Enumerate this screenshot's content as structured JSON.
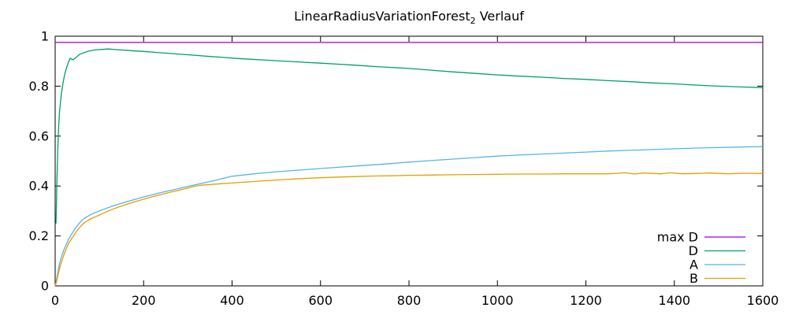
{
  "title": {
    "main": "LinearRadiusVariationForest",
    "subscript": "2",
    "suffix": " Verlauf"
  },
  "colors": {
    "background": "#ffffff",
    "axis": "#000000",
    "max_d": "#9400d3",
    "d": "#009e73",
    "a": "#56b4e9",
    "b": "#e69f00"
  },
  "chart_data": {
    "type": "line",
    "title": "LinearRadiusVariationForest_2 Verlauf",
    "xlabel": "",
    "ylabel": "",
    "xlim": [
      0,
      1600
    ],
    "ylim": [
      0,
      1
    ],
    "grid": false,
    "legend_position": "inside-bottom-right",
    "xticks": [
      {
        "v": 0,
        "label": "0"
      },
      {
        "v": 200,
        "label": "200"
      },
      {
        "v": 400,
        "label": "400"
      },
      {
        "v": 600,
        "label": "600"
      },
      {
        "v": 800,
        "label": "800"
      },
      {
        "v": 1000,
        "label": "1000"
      },
      {
        "v": 1200,
        "label": "1200"
      },
      {
        "v": 1400,
        "label": "1400"
      },
      {
        "v": 1600,
        "label": "1600"
      }
    ],
    "yticks": [
      {
        "v": 0,
        "label": "0"
      },
      {
        "v": 0.2,
        "label": "0.2"
      },
      {
        "v": 0.4,
        "label": "0.4"
      },
      {
        "v": 0.6,
        "label": "0.6"
      },
      {
        "v": 0.8,
        "label": "0.8"
      },
      {
        "v": 1,
        "label": "1"
      }
    ],
    "series": [
      {
        "name": "max D",
        "color": "#9400d3",
        "x": [
          0,
          1600
        ],
        "y": [
          0.975,
          0.975
        ]
      },
      {
        "name": "D",
        "color": "#009e73",
        "x": [
          2,
          4,
          6,
          8,
          10,
          14,
          18,
          22,
          26,
          30,
          34,
          40,
          48,
          56,
          64,
          75,
          90,
          105,
          120,
          140,
          160,
          180,
          200,
          230,
          260,
          290,
          320,
          350,
          380,
          410,
          440,
          470,
          500,
          530,
          560,
          600,
          640,
          680,
          720,
          760,
          800,
          850,
          900,
          950,
          1000,
          1050,
          1100,
          1150,
          1200,
          1250,
          1300,
          1350,
          1400,
          1450,
          1500,
          1550,
          1600
        ],
        "y": [
          0.25,
          0.42,
          0.55,
          0.64,
          0.7,
          0.77,
          0.815,
          0.85,
          0.875,
          0.895,
          0.912,
          0.905,
          0.916,
          0.928,
          0.933,
          0.94,
          0.945,
          0.947,
          0.949,
          0.946,
          0.944,
          0.941,
          0.939,
          0.935,
          0.931,
          0.927,
          0.923,
          0.919,
          0.915,
          0.911,
          0.908,
          0.905,
          0.902,
          0.899,
          0.896,
          0.892,
          0.888,
          0.884,
          0.879,
          0.875,
          0.871,
          0.864,
          0.857,
          0.851,
          0.845,
          0.84,
          0.836,
          0.831,
          0.827,
          0.822,
          0.818,
          0.813,
          0.809,
          0.804,
          0.8,
          0.797,
          0.794
        ]
      },
      {
        "name": "A",
        "color": "#56b4e9",
        "x": [
          0,
          3,
          6,
          10,
          15,
          20,
          25,
          30,
          35,
          40,
          46,
          52,
          58,
          64,
          72,
          80,
          90,
          100,
          115,
          130,
          145,
          160,
          180,
          200,
          220,
          240,
          260,
          280,
          300,
          320,
          340,
          360,
          380,
          400,
          425,
          450,
          475,
          500,
          530,
          560,
          600,
          640,
          680,
          720,
          760,
          800,
          850,
          900,
          950,
          1000,
          1050,
          1100,
          1150,
          1200,
          1250,
          1300,
          1350,
          1400,
          1450,
          1500,
          1550,
          1600
        ],
        "y": [
          0,
          0.025,
          0.055,
          0.09,
          0.12,
          0.145,
          0.165,
          0.185,
          0.2,
          0.215,
          0.232,
          0.245,
          0.258,
          0.268,
          0.277,
          0.285,
          0.293,
          0.3,
          0.31,
          0.32,
          0.328,
          0.336,
          0.346,
          0.356,
          0.365,
          0.374,
          0.382,
          0.39,
          0.398,
          0.406,
          0.414,
          0.422,
          0.431,
          0.439,
          0.444,
          0.449,
          0.453,
          0.457,
          0.461,
          0.465,
          0.47,
          0.475,
          0.48,
          0.485,
          0.49,
          0.496,
          0.502,
          0.508,
          0.514,
          0.52,
          0.524,
          0.528,
          0.532,
          0.536,
          0.54,
          0.543,
          0.546,
          0.549,
          0.552,
          0.554,
          0.556,
          0.558
        ]
      },
      {
        "name": "B",
        "color": "#e69f00",
        "x": [
          0,
          3,
          6,
          10,
          15,
          20,
          25,
          30,
          35,
          40,
          46,
          52,
          58,
          64,
          72,
          80,
          90,
          100,
          115,
          130,
          145,
          160,
          180,
          200,
          220,
          240,
          260,
          280,
          300,
          315,
          330,
          350,
          375,
          400,
          425,
          450,
          475,
          500,
          530,
          560,
          600,
          640,
          680,
          720,
          760,
          800,
          850,
          900,
          950,
          1000,
          1050,
          1100,
          1150,
          1200,
          1250,
          1290,
          1310,
          1330,
          1370,
          1390,
          1420,
          1450,
          1480,
          1520,
          1560,
          1600
        ],
        "y": [
          0,
          0.015,
          0.04,
          0.07,
          0.1,
          0.125,
          0.148,
          0.168,
          0.183,
          0.197,
          0.213,
          0.227,
          0.24,
          0.25,
          0.26,
          0.268,
          0.276,
          0.284,
          0.296,
          0.307,
          0.317,
          0.326,
          0.337,
          0.347,
          0.357,
          0.366,
          0.375,
          0.383,
          0.392,
          0.399,
          0.403,
          0.406,
          0.409,
          0.412,
          0.415,
          0.418,
          0.421,
          0.424,
          0.427,
          0.43,
          0.433,
          0.436,
          0.438,
          0.44,
          0.441,
          0.443,
          0.444,
          0.445,
          0.446,
          0.447,
          0.448,
          0.448,
          0.449,
          0.449,
          0.449,
          0.453,
          0.448,
          0.452,
          0.449,
          0.453,
          0.449,
          0.45,
          0.452,
          0.449,
          0.451,
          0.45
        ]
      }
    ],
    "legend": [
      {
        "label": "max D"
      },
      {
        "label": "D"
      },
      {
        "label": "A"
      },
      {
        "label": "B"
      }
    ]
  }
}
